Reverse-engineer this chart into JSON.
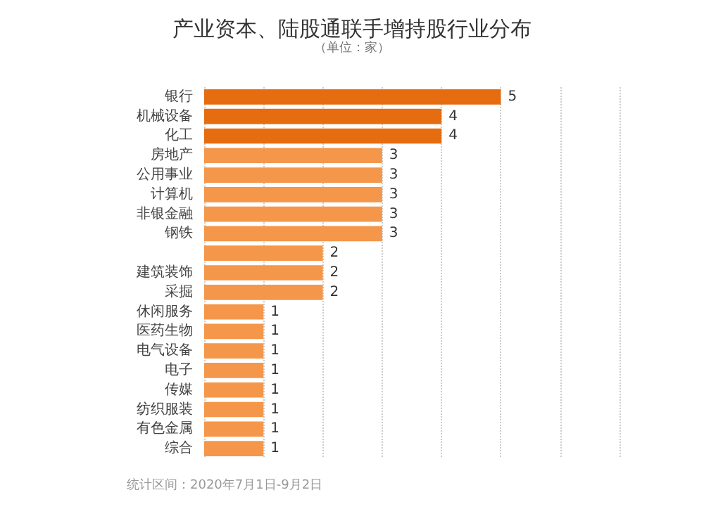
{
  "chart_data": {
    "type": "bar",
    "orientation": "horizontal",
    "title": "产业资本、陆股通联手增持股行业分布",
    "subtitle": "（单位：家）",
    "categories": [
      "银行",
      "机械设备",
      "化工",
      "房地产",
      "公用事业",
      "计算机",
      "非银金融",
      "钢铁",
      null,
      "建筑装饰",
      "采掘",
      "休闲服务",
      "医药生物",
      "电气设备",
      "电子",
      "传媒",
      "纺织服装",
      "有色金属",
      "综合"
    ],
    "values": [
      5,
      4,
      4,
      3,
      3,
      3,
      3,
      3,
      2,
      2,
      2,
      1,
      1,
      1,
      1,
      1,
      1,
      1,
      1
    ],
    "colors": [
      "#e56d10",
      "#e56d10",
      "#e56d10",
      "#f4974a",
      "#f4974a",
      "#f4974a",
      "#f4974a",
      "#f4974a",
      "#f4974a",
      "#f4974a",
      "#f4974a",
      "#f4974a",
      "#f4974a",
      "#f4974a",
      "#f4974a",
      "#f4974a",
      "#f4974a",
      "#f4974a",
      "#f4974a"
    ],
    "data_labels": true,
    "xlim": [
      0,
      7
    ],
    "xticks": [
      {
        "value": 0,
        "label": null
      },
      {
        "value": 1,
        "label": null
      },
      {
        "value": 2,
        "label": null
      },
      {
        "value": 3,
        "label": null
      },
      {
        "value": 4,
        "label": null
      },
      {
        "value": 5,
        "label": null
      },
      {
        "value": 6,
        "label": null
      },
      {
        "value": 7,
        "label": null
      }
    ],
    "grid": "x",
    "tick_labels": "y",
    "annotations": [
      "统计区间：2020年7月1日-9月2日"
    ]
  }
}
